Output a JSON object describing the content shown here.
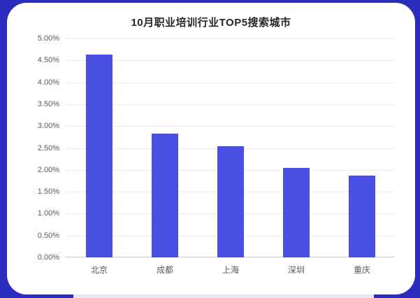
{
  "chart_data": {
    "type": "bar",
    "title": "10月职业培训行业TOP5搜索城市",
    "categories": [
      "北京",
      "成都",
      "上海",
      "深圳",
      "重庆"
    ],
    "values": [
      4.63,
      2.83,
      2.54,
      2.04,
      1.87
    ],
    "value_unit": "%",
    "xlabel": "",
    "ylabel": "",
    "ylim": [
      0,
      5
    ],
    "ytick_step": 0.5,
    "ytick_labels": [
      "0.00%",
      "0.50%",
      "1.00%",
      "1.50%",
      "2.00%",
      "2.50%",
      "3.00%",
      "3.50%",
      "4.00%",
      "4.50%",
      "5.00%"
    ],
    "grid": "horizontal dotted, solid bottom axis, no vertical axis line",
    "legend": "none",
    "bar_color": "#4a50e4"
  },
  "colors": {
    "frame": "#2b2bbd",
    "card": "#ffffff",
    "gridline": "#d9d9d9",
    "axis_line": "#c9c9c9",
    "tick_text": "#595959",
    "title_text": "#262626",
    "bottom_strip": "#e7e7f6"
  }
}
